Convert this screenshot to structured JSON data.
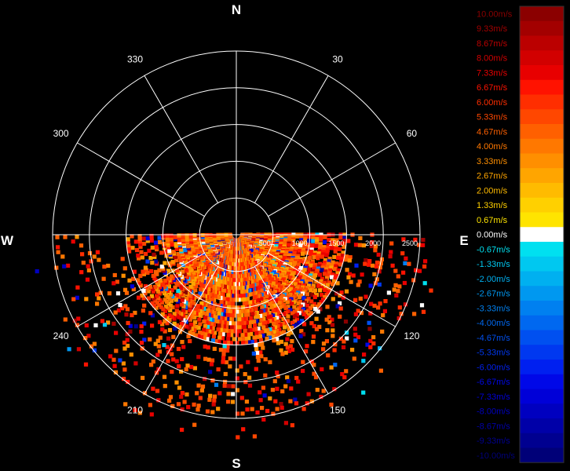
{
  "chart_data": {
    "type": "heatmap",
    "subtype": "polar-ppi-radial-velocity",
    "compass_labels": {
      "north": "N",
      "east": "E",
      "south": "S",
      "west": "W"
    },
    "bearing_labels": [
      "30",
      "60",
      "120",
      "150",
      "210",
      "240",
      "300",
      "330"
    ],
    "range_rings": [
      500,
      1000,
      1500,
      2000,
      2500
    ],
    "range_labels": [
      "500",
      "1000",
      "1500",
      "2000",
      "2500"
    ],
    "max_range": 2500,
    "spoke_bearings": [
      0,
      30,
      60,
      90,
      120,
      150,
      180,
      210,
      240,
      270,
      300,
      330
    ],
    "colorbar": {
      "levels": [
        {
          "label": "10.00m/s",
          "color": "#8b0000"
        },
        {
          "label": "9.33m/s",
          "color": "#a30000"
        },
        {
          "label": "8.67m/s",
          "color": "#bb0000"
        },
        {
          "label": "8.00m/s",
          "color": "#d20000"
        },
        {
          "label": "7.33m/s",
          "color": "#e80000"
        },
        {
          "label": "6.67m/s",
          "color": "#ff1200"
        },
        {
          "label": "6.00m/s",
          "color": "#ff2e00"
        },
        {
          "label": "5.33m/s",
          "color": "#ff4700"
        },
        {
          "label": "4.67m/s",
          "color": "#ff6000"
        },
        {
          "label": "4.00m/s",
          "color": "#ff7800"
        },
        {
          "label": "3.33m/s",
          "color": "#ff8f00"
        },
        {
          "label": "2.67m/s",
          "color": "#ffa500"
        },
        {
          "label": "2.00m/s",
          "color": "#ffbb00"
        },
        {
          "label": "1.33m/s",
          "color": "#ffd000"
        },
        {
          "label": "0.67m/s",
          "color": "#ffe400"
        },
        {
          "label": "0.00m/s",
          "color": "#ffffff"
        },
        {
          "label": "-0.67m/s",
          "color": "#00e0f0"
        },
        {
          "label": "-1.33m/s",
          "color": "#00c8f0"
        },
        {
          "label": "-2.00m/s",
          "color": "#00b0f0"
        },
        {
          "label": "-2.67m/s",
          "color": "#0098f0"
        },
        {
          "label": "-3.33m/s",
          "color": "#0080f0"
        },
        {
          "label": "-4.00m/s",
          "color": "#0068f0"
        },
        {
          "label": "-4.67m/s",
          "color": "#0050f0"
        },
        {
          "label": "-5.33m/s",
          "color": "#0038f0"
        },
        {
          "label": "-6.00m/s",
          "color": "#0020f0"
        },
        {
          "label": "-6.67m/s",
          "color": "#0008e8"
        },
        {
          "label": "-7.33m/s",
          "color": "#0000d8"
        },
        {
          "label": "-8.00m/s",
          "color": "#0000c0"
        },
        {
          "label": "-8.67m/s",
          "color": "#0000a8"
        },
        {
          "label": "-9.33m/s",
          "color": "#000090"
        },
        {
          "label": "-10.00m/s",
          "color": "#000078"
        }
      ]
    },
    "scan": {
      "azimuth_start_deg": 90,
      "azimuth_end_deg": 270,
      "dense_range_limit": 1500,
      "typical_velocity_range": [
        2.0,
        6.5
      ],
      "background_color": "#000000",
      "grid_color": "#ffffff"
    }
  }
}
